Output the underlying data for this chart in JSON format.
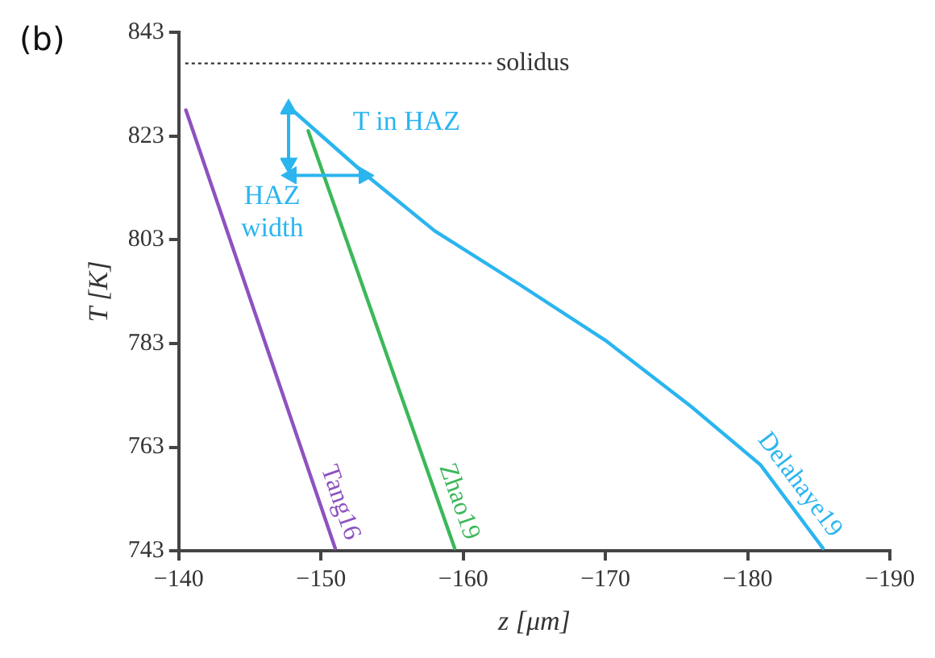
{
  "chart_data": {
    "type": "line",
    "xlabel": "z [μm]",
    "ylabel": "T [K]",
    "xlim": [
      -140,
      -190
    ],
    "xticks": [
      -140,
      -150,
      -160,
      -170,
      -180,
      -190
    ],
    "ylim": [
      743,
      843
    ],
    "yticks": [
      743,
      763,
      783,
      803,
      823,
      843
    ],
    "grid": false,
    "legend": false,
    "marker": "none",
    "line_style": "solid",
    "series": [
      {
        "name": "Tang16",
        "color": "#8e52c0",
        "x": [
          -140.5,
          -151
        ],
        "values": [
          828,
          743.5
        ]
      },
      {
        "name": "Zhao19",
        "color": "#3cb85a",
        "x": [
          -149.1,
          -159.4
        ],
        "values": [
          824,
          743.5
        ]
      },
      {
        "name": "Delahaye19",
        "color": "#2bb5ef",
        "x": [
          -147.7,
          -153.2,
          -158,
          -164,
          -170,
          -176,
          -180.9,
          -185.3
        ],
        "values": [
          828.7,
          815.4,
          804.7,
          794.3,
          783.6,
          770.9,
          759.6,
          743.5
        ]
      }
    ],
    "ref_lines": [
      {
        "axis": "y",
        "value": 837,
        "label": "solidus",
        "color": "#333333",
        "line_style": "dotted"
      }
    ],
    "annotations": [
      "(b)",
      "T in HAZ",
      "HAZ width"
    ]
  }
}
